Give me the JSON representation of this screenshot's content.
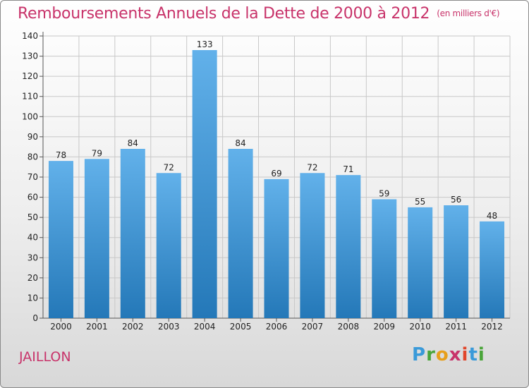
{
  "title": "Remboursements Annuels de la Dette de 2000 à 2012",
  "unit_note": "(en milliers d'€)",
  "place": "JAILLON",
  "logo_letters": [
    "P",
    "r",
    "o",
    "x",
    "i",
    "t",
    "i"
  ],
  "colors": {
    "title": "#c8336a",
    "bar_top": "#62b1ea",
    "bar_bottom": "#2478b8",
    "grid": "#c8c8c8"
  },
  "chart_data": {
    "type": "bar",
    "categories": [
      "2000",
      "2001",
      "2002",
      "2003",
      "2004",
      "2005",
      "2006",
      "2007",
      "2008",
      "2009",
      "2010",
      "2011",
      "2012"
    ],
    "values": [
      78,
      79,
      84,
      72,
      133,
      84,
      69,
      72,
      71,
      59,
      55,
      56,
      48
    ],
    "value_labels": [
      "78",
      "79",
      "84",
      "72",
      "133",
      "84",
      "69",
      "72",
      "71",
      "59",
      "55",
      "56",
      "48"
    ],
    "title": "Remboursements Annuels de la Dette de 2000 à 2012",
    "xlabel": "",
    "ylabel": "",
    "ylim": [
      0,
      140
    ],
    "yticks": [
      0,
      10,
      20,
      30,
      40,
      50,
      60,
      70,
      80,
      90,
      100,
      110,
      120,
      130,
      140
    ],
    "grid": true
  }
}
